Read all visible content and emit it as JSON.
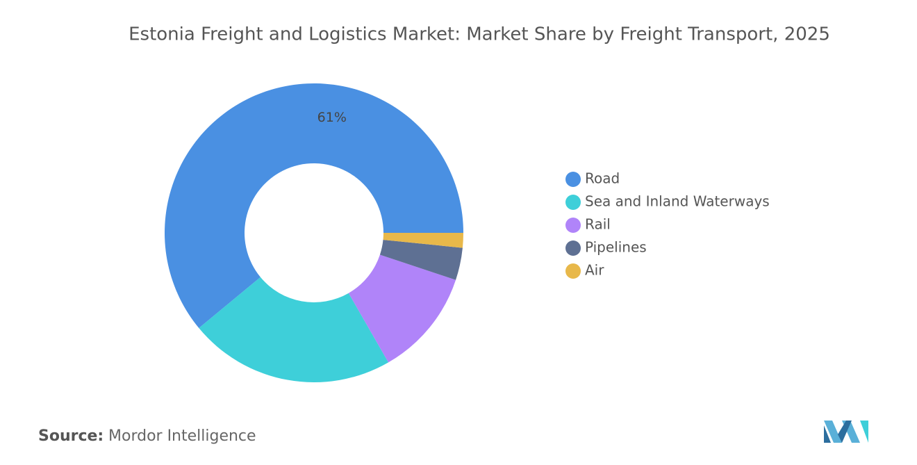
{
  "chart_data": {
    "type": "donut",
    "title": "Estonia Freight and Logistics Market: Market Share by Freight Transport, 2025",
    "categories": [
      "Road",
      "Sea and Inland Waterways",
      "Rail",
      "Pipelines",
      "Air"
    ],
    "values": [
      61,
      22.3,
      11.6,
      3.5,
      1.6
    ],
    "value_labels": [
      "61%",
      null,
      null,
      null,
      null
    ],
    "colors": [
      "#4a90e2",
      "#3ecfd9",
      "#b084f9",
      "#5e7093",
      "#e8b84a"
    ],
    "legend": "right"
  },
  "source": {
    "label": "Source:",
    "text": "Mordor Intelligence"
  }
}
